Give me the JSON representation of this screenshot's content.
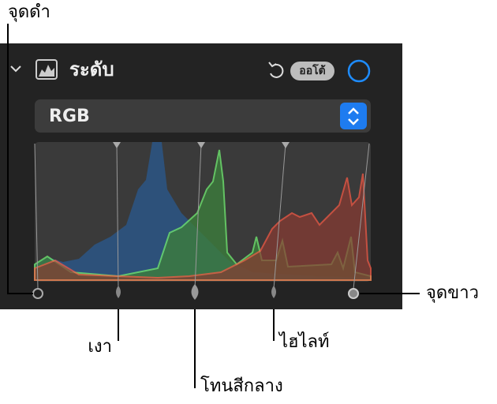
{
  "callouts": {
    "black_point": "จุดดำ",
    "white_point": "จุดขาว",
    "shadows": "เงา",
    "midtones": "โทนสีกลาง",
    "highlights": "ไฮไลท์"
  },
  "panel": {
    "title": "ระดับ",
    "auto_button": "ออโต้",
    "channel": "RGB"
  }
}
